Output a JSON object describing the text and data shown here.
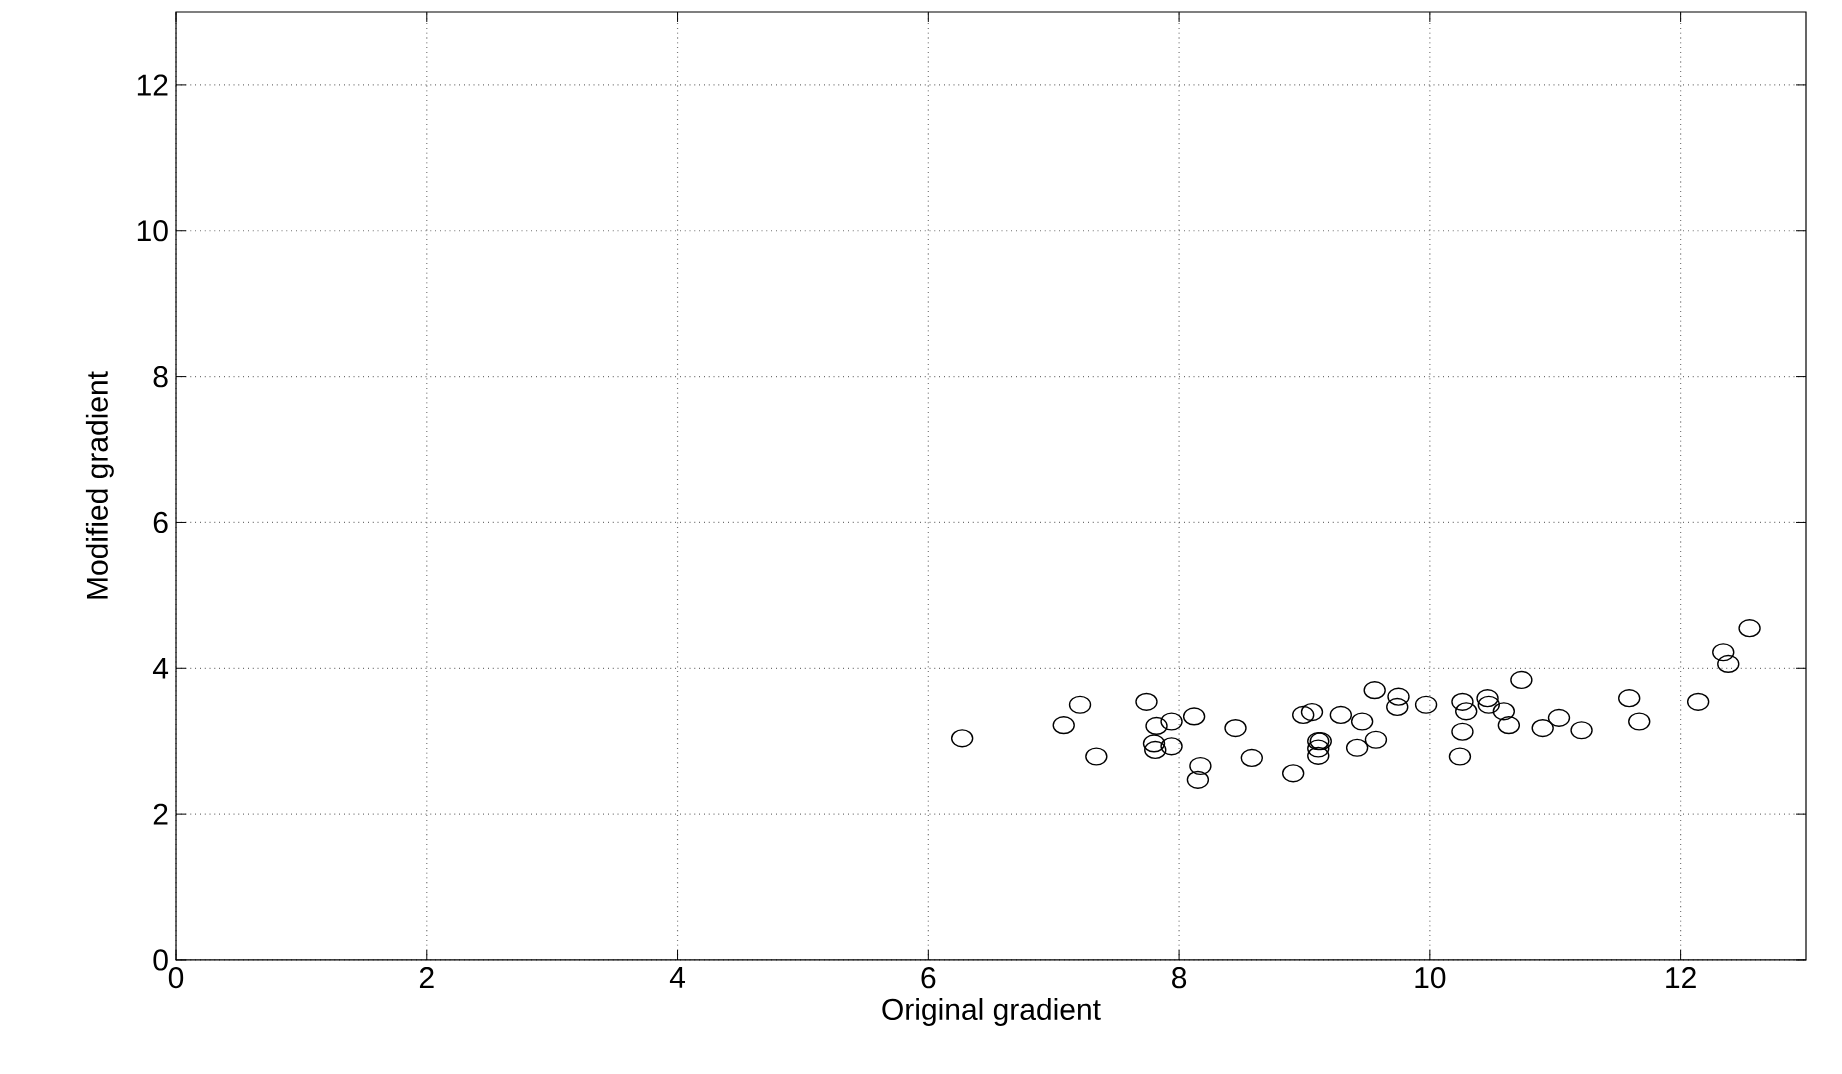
{
  "chart_data": {
    "type": "scatter",
    "xlabel": "Original gradient",
    "ylabel": "Modified gradient",
    "xlim": [
      0,
      13
    ],
    "ylim": [
      0,
      13
    ],
    "xticks": [
      0,
      2,
      4,
      6,
      8,
      10,
      12
    ],
    "yticks": [
      0,
      2,
      4,
      6,
      8,
      10,
      12
    ],
    "grid": true,
    "marker": "circle",
    "series": [
      {
        "color": "#000000",
        "x": [
          6.27,
          7.08,
          7.21,
          7.34,
          7.74,
          7.82,
          7.94,
          8.12,
          7.8,
          7.81,
          7.94,
          8.17,
          8.15,
          8.45,
          8.58,
          8.91,
          8.99,
          9.06,
          9.11,
          9.11,
          9.11,
          9.13,
          9.29,
          9.42,
          9.46,
          9.57,
          9.56,
          9.75,
          9.74,
          9.97,
          10.24,
          10.26,
          10.26,
          10.29,
          10.46,
          10.47,
          10.59,
          10.63,
          10.73,
          10.9,
          11.03,
          11.21,
          11.59,
          11.67,
          12.14,
          12.34,
          12.38,
          12.55
        ],
        "values": [
          3.04,
          3.22,
          3.5,
          2.79,
          3.54,
          3.21,
          3.27,
          3.34,
          2.97,
          2.88,
          2.93,
          2.66,
          2.47,
          3.18,
          2.77,
          2.56,
          3.36,
          3.4,
          3.0,
          2.9,
          2.8,
          3.0,
          3.36,
          2.91,
          3.27,
          3.02,
          3.7,
          3.61,
          3.47,
          3.5,
          2.79,
          3.13,
          3.54,
          3.41,
          3.59,
          3.5,
          3.41,
          3.22,
          3.84,
          3.18,
          3.32,
          3.15,
          3.59,
          3.27,
          3.54,
          4.22,
          4.06,
          4.55
        ]
      }
    ]
  }
}
